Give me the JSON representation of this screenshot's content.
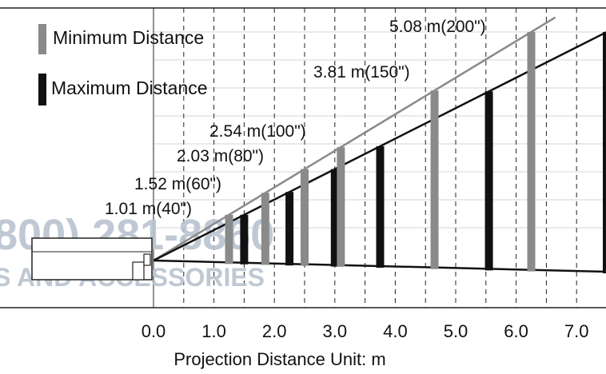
{
  "chart_data": {
    "type": "diagram",
    "title": "",
    "xlabel": "Projection Distance Unit: m",
    "x_ticks": [
      "0.0",
      "1.0",
      "2.0",
      "3.0",
      "4.0",
      "5.0",
      "6.0",
      "7.0"
    ],
    "xlim": [
      0.0,
      7.5
    ],
    "legend": [
      {
        "name": "Minimum Distance",
        "color": "#8a8a8a"
      },
      {
        "name": "Maximum Distance",
        "color": "#111111"
      }
    ],
    "screen_sizes": [
      {
        "label": "1.01 m(40\")",
        "min_distance": 1.25,
        "max_distance": 1.5
      },
      {
        "label": "1.52 m(60\")",
        "min_distance": 1.85,
        "max_distance": 2.25
      },
      {
        "label": "2.03 m(80\")",
        "min_distance": 2.5,
        "max_distance": 3.0
      },
      {
        "label": "2.54 m(100\")",
        "min_distance": 3.1,
        "max_distance": 3.75
      },
      {
        "label": "3.81 m(150\")",
        "min_distance": 4.65,
        "max_distance": 5.55
      },
      {
        "label": "5.08 m(200\")",
        "min_distance": 6.25,
        "max_distance": 7.5
      }
    ]
  },
  "watermark": {
    "phone": "800) 281-8860",
    "text": "S AND ACCESSORIES"
  },
  "colors": {
    "min": "#8a8a8a",
    "max": "#111111",
    "grid": "#222222",
    "watermark": "#b9c3cf"
  }
}
